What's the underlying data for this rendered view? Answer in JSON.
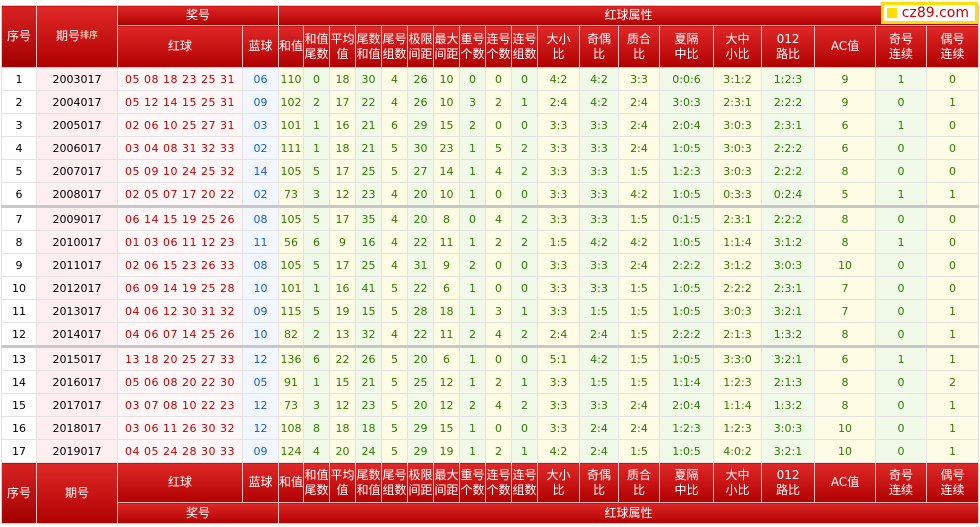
{
  "logo": "cz89.com",
  "header": {
    "no": "序号",
    "issue": "期号",
    "sort": "排序",
    "prize": "奖号",
    "red": "红球",
    "blue": "蓝球",
    "attr_group": "红球属性",
    "attrs": [
      "和值",
      "和值尾数",
      "平均值",
      "尾数和值",
      "尾号组数",
      "极限间距",
      "最大间距",
      "重号个数",
      "连号个数",
      "连号组数",
      "大小比",
      "奇偶比",
      "质合比",
      "夏隔中比",
      "大中小比",
      "012路比",
      "AC值",
      "奇号连续",
      "偶号连续"
    ]
  },
  "rows": [
    {
      "no": 1,
      "issue": "2003017",
      "red": [
        "05",
        "08",
        "18",
        "23",
        "25",
        "31"
      ],
      "blue": "06",
      "attrs": [
        110,
        0,
        18,
        30,
        4,
        26,
        10,
        0,
        0,
        0,
        "4:2",
        "4:2",
        "3:3",
        "0:0:6",
        "3:1:2",
        "1:2:3",
        9,
        1,
        0
      ]
    },
    {
      "no": 2,
      "issue": "2004017",
      "red": [
        "05",
        "12",
        "14",
        "15",
        "25",
        "31"
      ],
      "blue": "09",
      "attrs": [
        102,
        2,
        17,
        22,
        4,
        26,
        10,
        3,
        2,
        1,
        "2:4",
        "4:2",
        "2:4",
        "3:0:3",
        "2:3:1",
        "2:2:2",
        9,
        0,
        1
      ]
    },
    {
      "no": 3,
      "issue": "2005017",
      "red": [
        "02",
        "06",
        "10",
        "25",
        "27",
        "31"
      ],
      "blue": "03",
      "attrs": [
        101,
        1,
        16,
        21,
        6,
        29,
        15,
        2,
        0,
        0,
        "3:3",
        "3:3",
        "2:4",
        "2:0:4",
        "3:0:3",
        "2:3:1",
        6,
        1,
        0
      ]
    },
    {
      "no": 4,
      "issue": "2006017",
      "red": [
        "03",
        "04",
        "08",
        "31",
        "32",
        "33"
      ],
      "blue": "02",
      "attrs": [
        111,
        1,
        18,
        21,
        5,
        30,
        23,
        1,
        5,
        2,
        "3:3",
        "3:3",
        "2:4",
        "1:0:5",
        "3:0:3",
        "2:2:2",
        6,
        0,
        0
      ]
    },
    {
      "no": 5,
      "issue": "2007017",
      "red": [
        "05",
        "09",
        "10",
        "24",
        "25",
        "32"
      ],
      "blue": "14",
      "attrs": [
        105,
        5,
        17,
        25,
        5,
        27,
        14,
        1,
        4,
        2,
        "3:3",
        "3:3",
        "1:5",
        "1:2:3",
        "3:0:3",
        "2:2:2",
        8,
        0,
        0
      ]
    },
    {
      "no": 6,
      "issue": "2008017",
      "red": [
        "02",
        "05",
        "07",
        "17",
        "20",
        "22"
      ],
      "blue": "02",
      "attrs": [
        73,
        3,
        12,
        23,
        4,
        20,
        10,
        1,
        0,
        0,
        "3:3",
        "3:3",
        "4:2",
        "1:0:5",
        "0:3:3",
        "0:2:4",
        5,
        1,
        1
      ]
    },
    {
      "no": 7,
      "issue": "2009017",
      "red": [
        "06",
        "14",
        "15",
        "19",
        "25",
        "26"
      ],
      "blue": "08",
      "attrs": [
        105,
        5,
        17,
        35,
        4,
        20,
        8,
        0,
        4,
        2,
        "3:3",
        "3:3",
        "1:5",
        "0:1:5",
        "2:3:1",
        "2:2:2",
        8,
        0,
        0
      ]
    },
    {
      "no": 8,
      "issue": "2010017",
      "red": [
        "01",
        "03",
        "06",
        "11",
        "12",
        "23"
      ],
      "blue": "11",
      "attrs": [
        56,
        6,
        9,
        16,
        4,
        22,
        11,
        1,
        2,
        2,
        "1:5",
        "4:2",
        "4:2",
        "1:0:5",
        "1:1:4",
        "3:1:2",
        8,
        1,
        0
      ]
    },
    {
      "no": 9,
      "issue": "2011017",
      "red": [
        "02",
        "06",
        "15",
        "23",
        "26",
        "33"
      ],
      "blue": "08",
      "attrs": [
        105,
        5,
        17,
        25,
        4,
        31,
        9,
        2,
        0,
        0,
        "3:3",
        "3:3",
        "2:4",
        "2:2:2",
        "3:1:2",
        "3:0:3",
        10,
        0,
        0
      ]
    },
    {
      "no": 10,
      "issue": "2012017",
      "red": [
        "06",
        "09",
        "14",
        "19",
        "25",
        "28"
      ],
      "blue": "10",
      "attrs": [
        101,
        1,
        16,
        41,
        5,
        22,
        6,
        1,
        0,
        0,
        "3:3",
        "3:3",
        "1:5",
        "1:0:5",
        "2:2:2",
        "2:3:1",
        7,
        0,
        0
      ]
    },
    {
      "no": 11,
      "issue": "2013017",
      "red": [
        "04",
        "06",
        "12",
        "30",
        "31",
        "32"
      ],
      "blue": "09",
      "attrs": [
        115,
        5,
        19,
        15,
        5,
        28,
        18,
        1,
        3,
        1,
        "3:3",
        "1:5",
        "1:5",
        "1:0:5",
        "3:0:3",
        "3:2:1",
        7,
        0,
        1
      ]
    },
    {
      "no": 12,
      "issue": "2014017",
      "red": [
        "04",
        "06",
        "07",
        "14",
        "25",
        "26"
      ],
      "blue": "10",
      "attrs": [
        82,
        2,
        13,
        32,
        4,
        22,
        11,
        2,
        4,
        2,
        "2:4",
        "2:4",
        "1:5",
        "2:2:2",
        "2:1:3",
        "1:3:2",
        8,
        0,
        1
      ]
    },
    {
      "no": 13,
      "issue": "2015017",
      "red": [
        "13",
        "18",
        "20",
        "25",
        "27",
        "33"
      ],
      "blue": "12",
      "attrs": [
        136,
        6,
        22,
        26,
        5,
        20,
        6,
        1,
        0,
        0,
        "5:1",
        "4:2",
        "1:5",
        "1:0:5",
        "3:3:0",
        "3:2:1",
        6,
        1,
        1
      ]
    },
    {
      "no": 14,
      "issue": "2016017",
      "red": [
        "05",
        "06",
        "08",
        "20",
        "22",
        "30"
      ],
      "blue": "05",
      "attrs": [
        91,
        1,
        15,
        21,
        5,
        25,
        12,
        1,
        2,
        1,
        "3:3",
        "1:5",
        "1:5",
        "1:1:4",
        "1:2:3",
        "2:1:3",
        8,
        0,
        2
      ]
    },
    {
      "no": 15,
      "issue": "2017017",
      "red": [
        "03",
        "07",
        "08",
        "10",
        "22",
        "23"
      ],
      "blue": "12",
      "attrs": [
        73,
        3,
        12,
        23,
        5,
        20,
        12,
        2,
        4,
        2,
        "3:3",
        "3:3",
        "2:4",
        "2:0:4",
        "1:1:4",
        "1:3:2",
        8,
        0,
        1
      ]
    },
    {
      "no": 16,
      "issue": "2018017",
      "red": [
        "03",
        "06",
        "11",
        "26",
        "30",
        "32"
      ],
      "blue": "12",
      "attrs": [
        108,
        8,
        18,
        18,
        5,
        29,
        15,
        1,
        0,
        0,
        "3:3",
        "2:4",
        "2:4",
        "1:2:3",
        "1:2:3",
        "3:0:3",
        10,
        0,
        1
      ]
    },
    {
      "no": 17,
      "issue": "2019017",
      "red": [
        "04",
        "05",
        "24",
        "28",
        "30",
        "33"
      ],
      "blue": "09",
      "attrs": [
        124,
        4,
        20,
        24,
        5,
        29,
        19,
        1,
        2,
        1,
        "4:2",
        "2:4",
        "1:5",
        "1:0:5",
        "4:0:2",
        "3:2:1",
        10,
        0,
        1
      ]
    }
  ]
}
